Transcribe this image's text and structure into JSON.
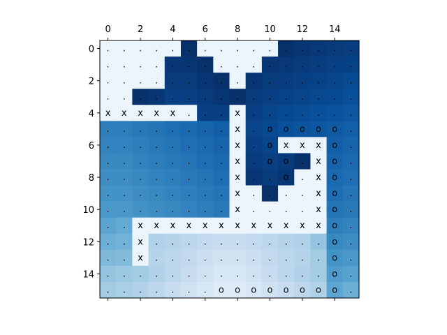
{
  "chart_data": {
    "type": "heatmap",
    "title": "",
    "xlabel": "",
    "ylabel": "",
    "colormap": "Blues",
    "value_range": [
      0,
      1
    ],
    "xlim": [
      -0.5,
      15.5
    ],
    "ylim": [
      15.5,
      -0.5
    ],
    "x_axis_position": "top",
    "grid": false,
    "x_ticks": [
      0,
      2,
      4,
      6,
      8,
      10,
      12,
      14
    ],
    "y_ticks": [
      0,
      2,
      4,
      6,
      8,
      10,
      12,
      14
    ],
    "x_tick_labels": [
      "0",
      "2",
      "4",
      "6",
      "8",
      "10",
      "12",
      "14"
    ],
    "y_tick_labels": [
      "0",
      "2",
      "4",
      "6",
      "8",
      "10",
      "12",
      "14"
    ],
    "grid_size": [
      16,
      16
    ],
    "values": [
      [
        0.05,
        0.05,
        0.05,
        0.05,
        0.05,
        1.0,
        0.05,
        0.05,
        0.05,
        0.05,
        0.05,
        1.0,
        0.98,
        0.97,
        0.96,
        0.95
      ],
      [
        0.05,
        0.05,
        0.05,
        0.05,
        0.98,
        0.98,
        1.0,
        0.05,
        0.05,
        0.05,
        0.98,
        0.97,
        0.96,
        0.95,
        0.94,
        0.93
      ],
      [
        0.05,
        0.05,
        0.05,
        0.05,
        0.96,
        0.96,
        0.98,
        1.0,
        0.05,
        0.98,
        0.96,
        0.95,
        0.94,
        0.93,
        0.92,
        0.9
      ],
      [
        0.05,
        0.05,
        1.0,
        0.98,
        0.94,
        0.94,
        0.96,
        0.98,
        1.0,
        0.96,
        0.94,
        0.93,
        0.92,
        0.91,
        0.9,
        0.88
      ],
      [
        0.05,
        0.05,
        0.05,
        0.05,
        0.05,
        0.05,
        0.94,
        0.94,
        0.05,
        0.94,
        0.92,
        0.9,
        0.89,
        0.88,
        0.87,
        0.85
      ],
      [
        0.7,
        0.7,
        0.72,
        0.74,
        0.76,
        0.78,
        0.8,
        0.82,
        0.05,
        0.92,
        0.9,
        0.88,
        0.86,
        0.85,
        0.84,
        0.82
      ],
      [
        0.68,
        0.68,
        0.7,
        0.72,
        0.74,
        0.76,
        0.78,
        0.8,
        0.05,
        0.94,
        0.92,
        0.05,
        0.05,
        0.05,
        0.82,
        0.8
      ],
      [
        0.66,
        0.66,
        0.68,
        0.7,
        0.72,
        0.74,
        0.76,
        0.78,
        0.05,
        0.96,
        0.94,
        0.96,
        1.0,
        0.05,
        0.8,
        0.78
      ],
      [
        0.64,
        0.64,
        0.66,
        0.68,
        0.7,
        0.72,
        0.74,
        0.76,
        0.05,
        0.98,
        0.96,
        0.98,
        0.05,
        0.05,
        0.78,
        0.76
      ],
      [
        0.62,
        0.62,
        0.64,
        0.66,
        0.68,
        0.7,
        0.72,
        0.74,
        0.05,
        0.05,
        1.0,
        0.05,
        0.05,
        0.05,
        0.76,
        0.74
      ],
      [
        0.6,
        0.6,
        0.62,
        0.64,
        0.66,
        0.68,
        0.7,
        0.72,
        0.05,
        0.05,
        0.05,
        0.05,
        0.05,
        0.05,
        0.74,
        0.72
      ],
      [
        0.55,
        0.52,
        0.05,
        0.05,
        0.05,
        0.05,
        0.05,
        0.05,
        0.05,
        0.05,
        0.05,
        0.05,
        0.05,
        0.05,
        0.7,
        0.68
      ],
      [
        0.5,
        0.48,
        0.05,
        0.32,
        0.3,
        0.28,
        0.26,
        0.24,
        0.24,
        0.26,
        0.28,
        0.3,
        0.32,
        0.4,
        0.66,
        0.64
      ],
      [
        0.45,
        0.44,
        0.05,
        0.3,
        0.28,
        0.26,
        0.22,
        0.2,
        0.2,
        0.22,
        0.26,
        0.28,
        0.3,
        0.36,
        0.62,
        0.6
      ],
      [
        0.4,
        0.38,
        0.36,
        0.32,
        0.28,
        0.24,
        0.2,
        0.16,
        0.16,
        0.2,
        0.24,
        0.28,
        0.32,
        0.36,
        0.58,
        0.56
      ],
      [
        0.36,
        0.34,
        0.32,
        0.28,
        0.24,
        0.2,
        0.16,
        0.12,
        0.12,
        0.16,
        0.2,
        0.24,
        0.28,
        0.32,
        0.54,
        0.5
      ]
    ],
    "annotations": [
      ". . . . . . . . . . . . . . . .",
      ". . . . . . . . . . . . . . . .",
      ". . . . . . . . . . . . . . . .",
      ". . . . . . . . . . . . . . . .",
      "x x x x x . . . x . . . . . . .",
      ". . . . . . . . x . o o o o o .",
      ". . . . . . . . x . o x x x o .",
      ". . . . . . . . x . o o . x o .",
      ". . . . . . . . x . . o . x o .",
      ". . . . . . . . x . . . . x o .",
      ". . . . . . . . x . . . . x o .",
      ". . x x x x x x x x x x x x o .",
      ". . x . . . . . . . . . . . o .",
      ". . x . . . . . . . . . . . o .",
      ". . . . . . . . . . . . . . o .",
      ". . . . . . . o o o o o o o o ."
    ]
  }
}
